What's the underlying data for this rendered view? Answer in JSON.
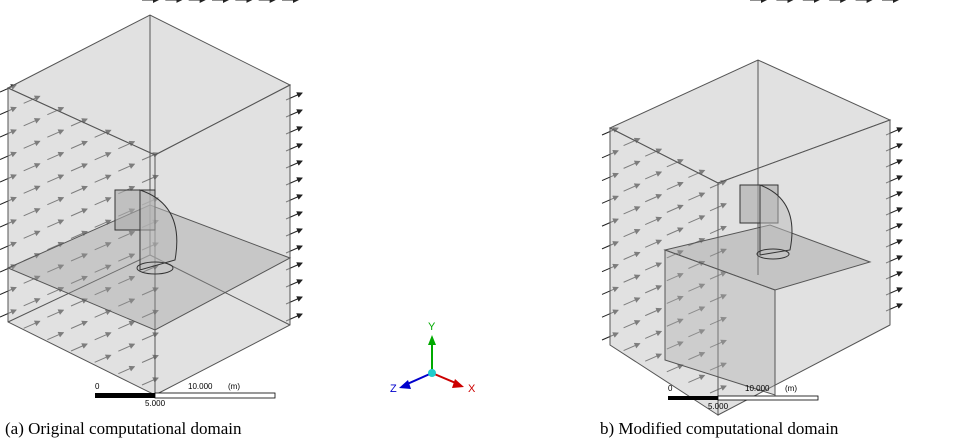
{
  "panels": [
    {
      "caption": "(a) Original computational domain",
      "scale": {
        "start": "0",
        "mid": "5.000",
        "end": "10.000",
        "unit": "(m)"
      }
    },
    {
      "caption": "b) Modified computational domain",
      "scale": {
        "start": "0",
        "mid": "5.000",
        "end": "10.000",
        "unit": "(m)"
      }
    }
  ],
  "triad": {
    "y": "Y",
    "z": "Z",
    "x": "X"
  }
}
